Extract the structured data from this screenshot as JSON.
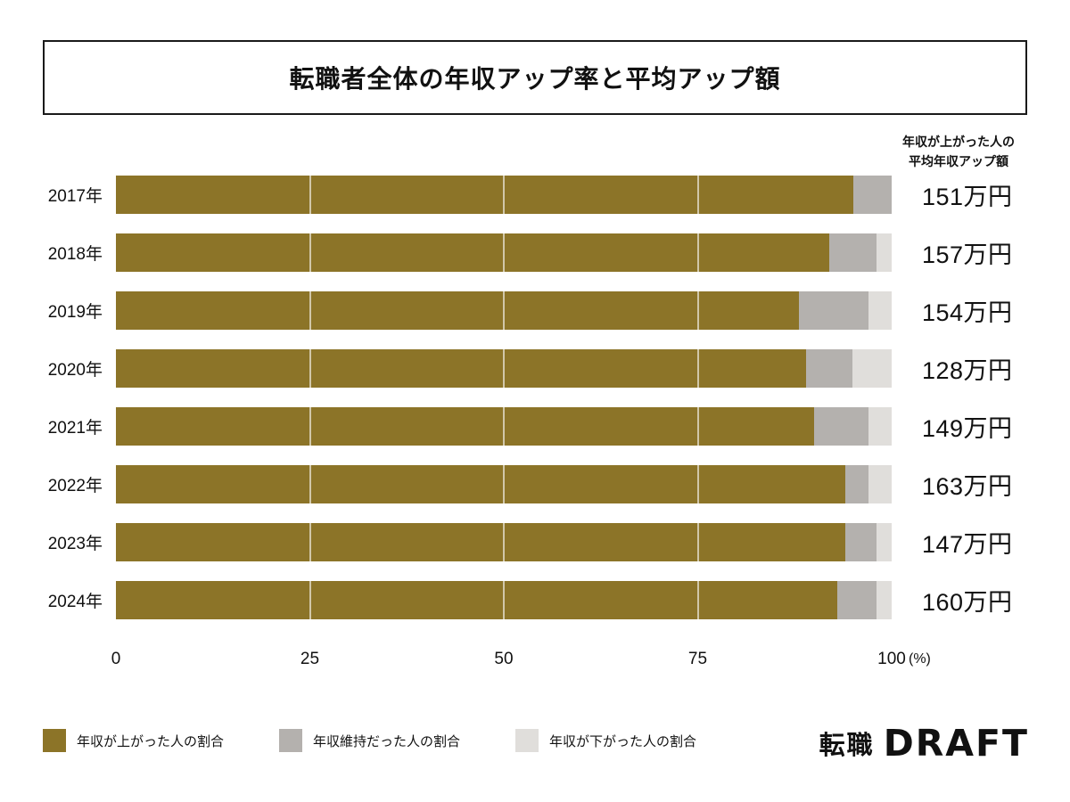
{
  "title": "転職者全体の年収アップ率と平均アップ額",
  "right_header": {
    "line1": "年収が上がった人の",
    "line2": "平均年収アップ額"
  },
  "chart_data": {
    "type": "bar",
    "orientation": "horizontal",
    "stacked": true,
    "title": "転職者全体の年収アップ率と平均アップ額",
    "categories": [
      "2017年",
      "2018年",
      "2019年",
      "2020年",
      "2021年",
      "2022年",
      "2023年",
      "2024年"
    ],
    "series": [
      {
        "name": "年収が上がった人の割合",
        "color": "#8c7428",
        "values": [
          95,
          92,
          88,
          89,
          90,
          94,
          94,
          93
        ]
      },
      {
        "name": "年収維持だった人の割合",
        "color": "#b4b1ae",
        "values": [
          5,
          6,
          9,
          6,
          7,
          3,
          4,
          5
        ]
      },
      {
        "name": "年収が下がった人の割合",
        "color": "#e0dedb",
        "values": [
          0,
          2,
          3,
          5,
          3,
          3,
          2,
          2
        ]
      }
    ],
    "avg_up_amounts": [
      "151万円",
      "157万円",
      "154万円",
      "128万円",
      "149万円",
      "163万円",
      "147万円",
      "160万円"
    ],
    "avg_up_amounts_header": "年収が上がった人の平均年収アップ額",
    "x_ticks": [
      "0",
      "25",
      "50",
      "75",
      "100"
    ],
    "x_unit": "(%)",
    "xlim": [
      0,
      100
    ],
    "gridlines_pct": [
      25,
      50,
      75
    ]
  },
  "legend": [
    {
      "label": "年収が上がった人の割合",
      "color": "#8c7428"
    },
    {
      "label": "年収維持だった人の割合",
      "color": "#b4b1ae"
    },
    {
      "label": "年収が下がった人の割合",
      "color": "#e0dedb"
    }
  ],
  "logo": {
    "prefix": "転職",
    "brand": "DRAFT"
  }
}
